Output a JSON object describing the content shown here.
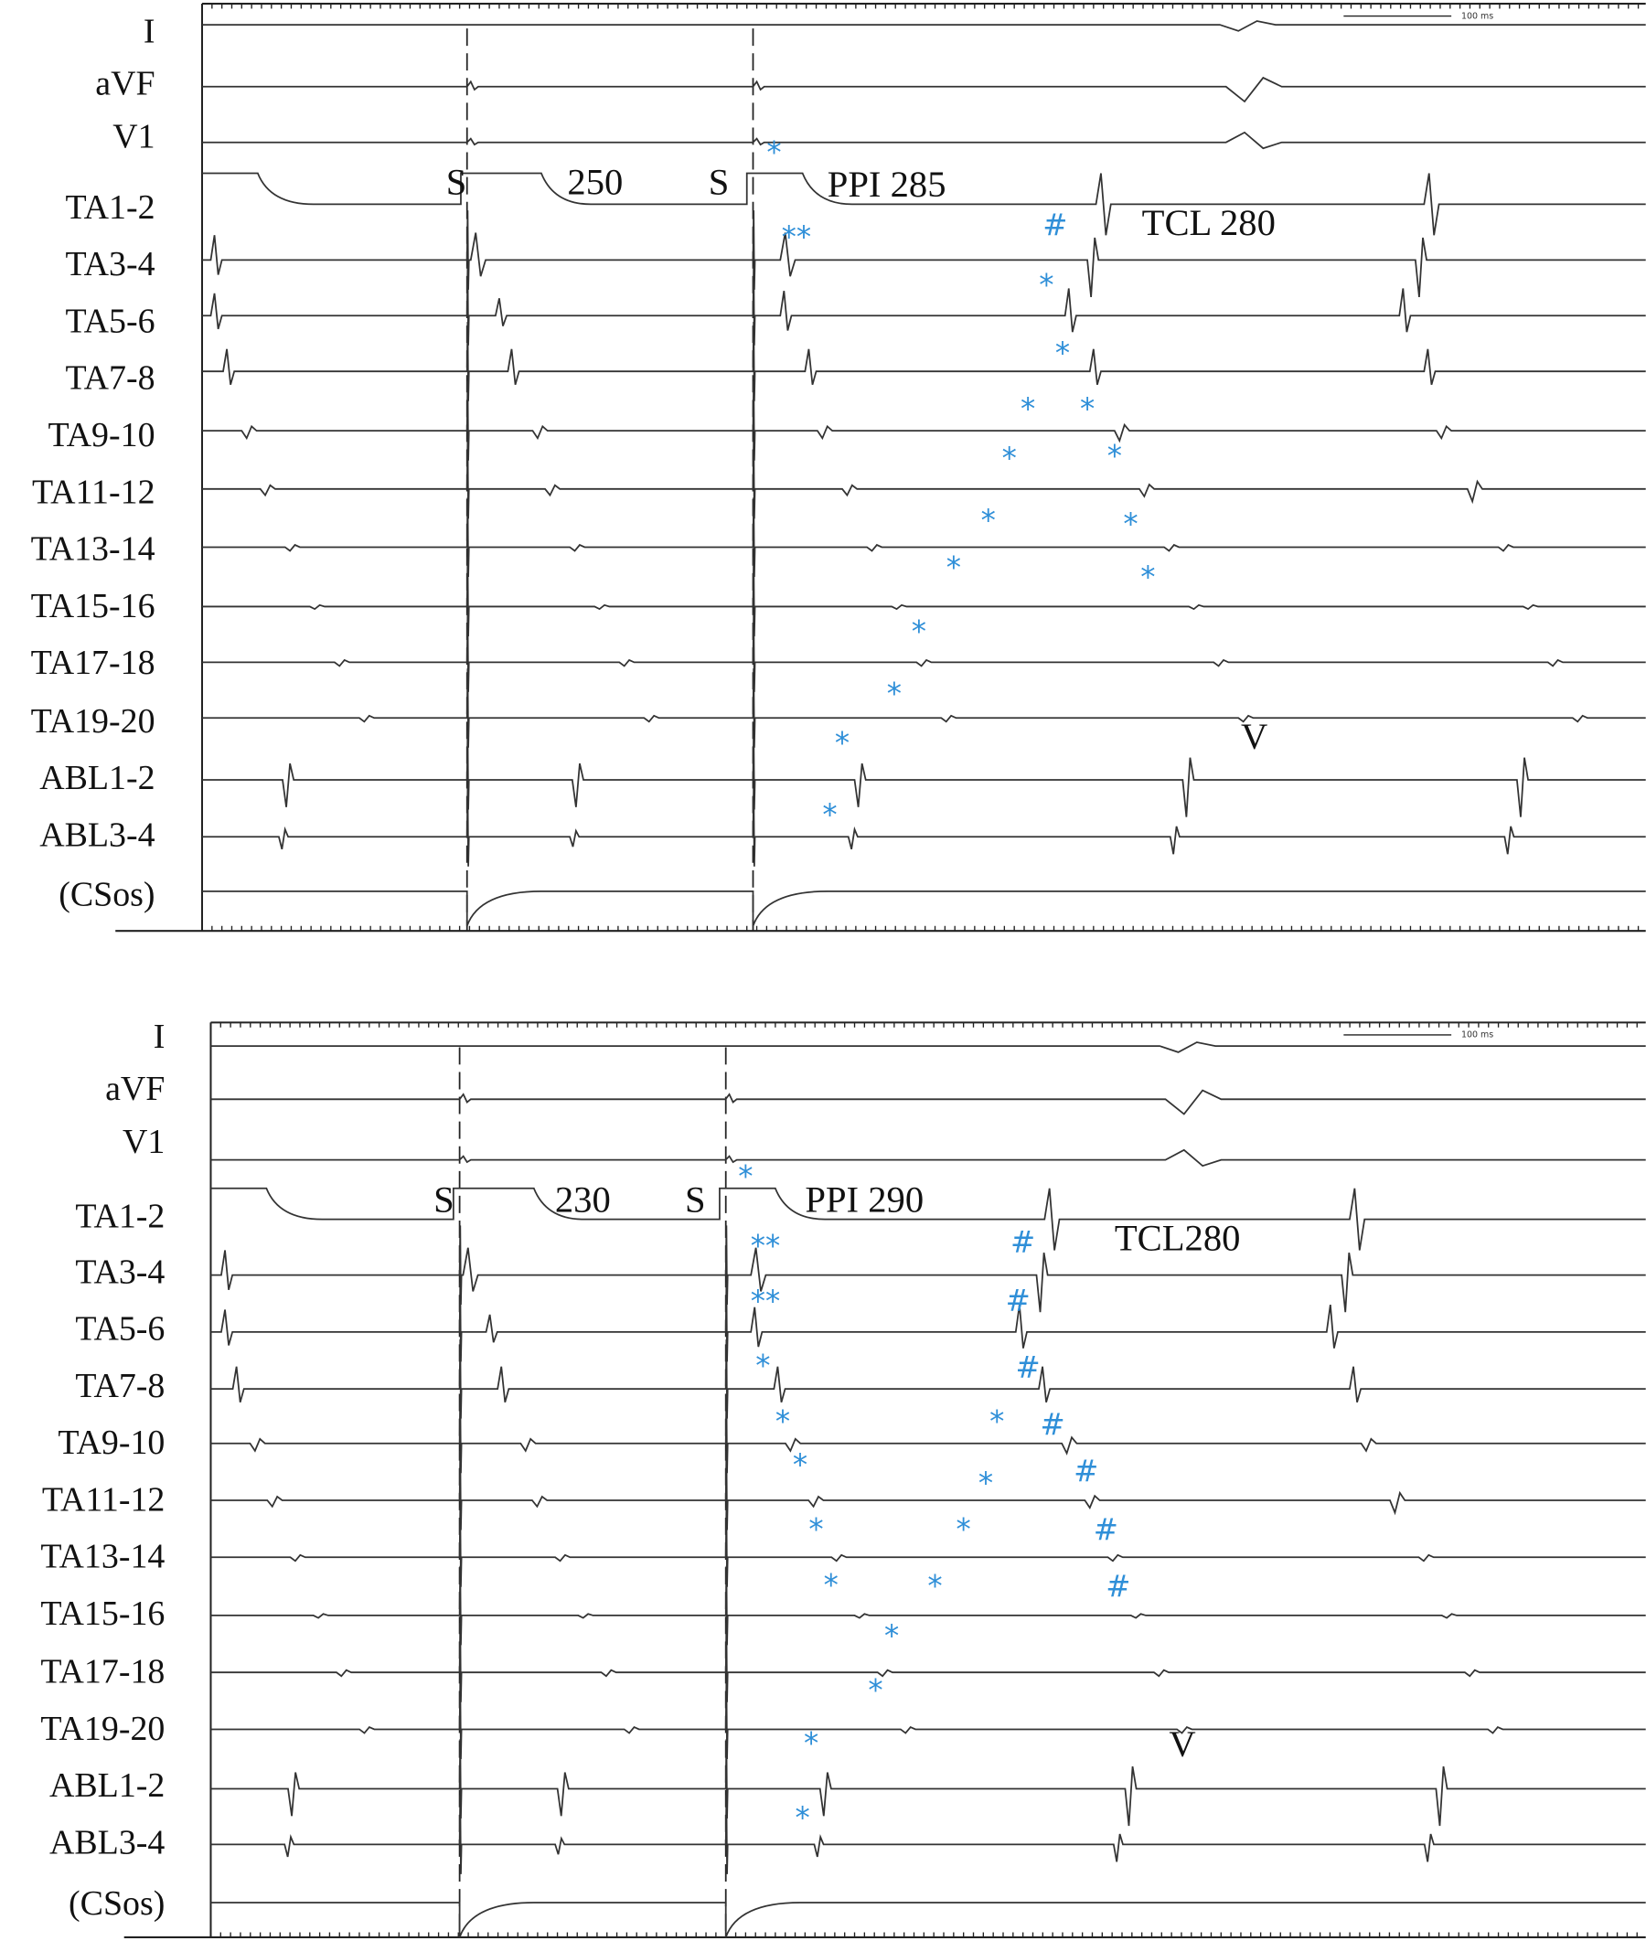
{
  "panels": [
    {
      "channels": [
        "I",
        "aVF",
        "V1",
        "TA1-2",
        "TA3-4",
        "TA5-6",
        "TA7-8",
        "TA9-10",
        "TA11-12",
        "TA13-14",
        "TA15-16",
        "TA17-18",
        "TA19-20",
        "ABL1-2",
        "ABL3-4",
        "(CSos)"
      ],
      "scale_label": "100 ms",
      "annotations": [
        "S",
        "250",
        "S",
        "PPI 285",
        "TCL 280",
        "V"
      ],
      "markers": [
        "*",
        "**",
        "#",
        "*",
        "*",
        "*",
        "*",
        "*",
        "*",
        "*",
        "*",
        "*",
        "*",
        "*",
        "*",
        "*",
        "*"
      ]
    },
    {
      "channels": [
        "I",
        "aVF",
        "V1",
        "TA1-2",
        "TA3-4",
        "TA5-6",
        "TA7-8",
        "TA9-10",
        "TA11-12",
        "TA13-14",
        "TA15-16",
        "TA17-18",
        "TA19-20",
        "ABL1-2",
        "ABL3-4",
        "(CSos)"
      ],
      "scale_label": "100 ms",
      "annotations": [
        "S",
        "230",
        "S",
        "PPI 290",
        "TCL280",
        "V"
      ],
      "markers": [
        "*",
        "**",
        "#",
        "**",
        "#",
        "*",
        "#",
        "*",
        "*",
        "#",
        "*",
        "*",
        "#",
        "*",
        "*",
        "#",
        "*",
        "*",
        "#",
        "*",
        "*",
        "*",
        "*"
      ]
    }
  ]
}
